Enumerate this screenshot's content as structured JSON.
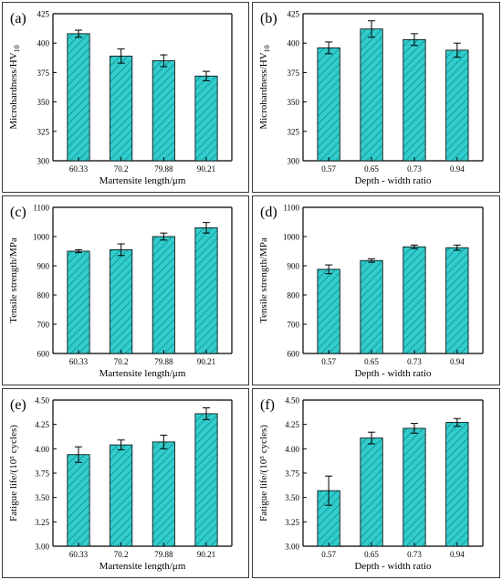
{
  "colors": {
    "bar_fill": "#33cccc",
    "bar_hatch": "#0d8f93",
    "axis": "#000000",
    "border": "#3a3a3a"
  },
  "chart_data": [
    {
      "id": "a",
      "type": "bar",
      "panel_label": "(a)",
      "categories": [
        "60.33",
        "70.2",
        "79.88",
        "90.21"
      ],
      "values": [
        408,
        389,
        385,
        372
      ],
      "errors": [
        3,
        6,
        5,
        4
      ],
      "xlabel": "Martensite length/μm",
      "ylabel": "Microhardness/HV",
      "ylabel_sub": "10",
      "ylim": [
        300,
        425
      ],
      "yticks": [
        "300",
        "325",
        "350",
        "375",
        "400",
        "425"
      ],
      "yticks_values": [
        300,
        325,
        350,
        375,
        400,
        425
      ]
    },
    {
      "id": "b",
      "type": "bar",
      "panel_label": "(b)",
      "categories": [
        "0.57",
        "0.65",
        "0.73",
        "0.94"
      ],
      "values": [
        396,
        412,
        403,
        394
      ],
      "errors": [
        5,
        7,
        5,
        6
      ],
      "xlabel": "Depth - width ratio",
      "ylabel": "Microhardness/HV",
      "ylabel_sub": "10",
      "ylim": [
        300,
        425
      ],
      "yticks": [
        "300",
        "325",
        "350",
        "375",
        "400",
        "425"
      ],
      "yticks_values": [
        300,
        325,
        350,
        375,
        400,
        425
      ]
    },
    {
      "id": "c",
      "type": "bar",
      "panel_label": "(c)",
      "categories": [
        "60.33",
        "70.2",
        "79.88",
        "90.21"
      ],
      "values": [
        950,
        955,
        1000,
        1030
      ],
      "errors": [
        5,
        20,
        12,
        18
      ],
      "xlabel": "Martensite length/μm",
      "ylabel": "Tensile strength/MPa",
      "ylabel_sub": "",
      "ylim": [
        600,
        1100
      ],
      "yticks": [
        "600",
        "700",
        "800",
        "900",
        "1000",
        "1100"
      ],
      "yticks_values": [
        600,
        700,
        800,
        900,
        1000,
        1100
      ]
    },
    {
      "id": "d",
      "type": "bar",
      "panel_label": "(d)",
      "categories": [
        "0.57",
        "0.65",
        "0.73",
        "0.94"
      ],
      "values": [
        888,
        918,
        965,
        962
      ],
      "errors": [
        15,
        6,
        6,
        9
      ],
      "xlabel": "Depth - width ratio",
      "ylabel": "Tensile strength/MPa",
      "ylabel_sub": "",
      "ylim": [
        600,
        1100
      ],
      "yticks": [
        "600",
        "700",
        "800",
        "900",
        "1000",
        "1100"
      ],
      "yticks_values": [
        600,
        700,
        800,
        900,
        1000,
        1100
      ]
    },
    {
      "id": "e",
      "type": "bar",
      "panel_label": "(e)",
      "categories": [
        "60.33",
        "70.2",
        "79.88",
        "90.21"
      ],
      "values": [
        3.94,
        4.04,
        4.07,
        4.36
      ],
      "errors": [
        0.08,
        0.05,
        0.07,
        0.06
      ],
      "xlabel": "Martensite length/μm",
      "ylabel": "Fatigue life/(10⁵ cycles)",
      "ylabel_sub": "",
      "ylim": [
        3.0,
        4.5
      ],
      "yticks": [
        "3.00",
        "3.25",
        "3.50",
        "3.75",
        "4.00",
        "4.25",
        "4.50"
      ],
      "yticks_values": [
        3.0,
        3.25,
        3.5,
        3.75,
        4.0,
        4.25,
        4.5
      ]
    },
    {
      "id": "f",
      "type": "bar",
      "panel_label": "(f)",
      "categories": [
        "0.57",
        "0.65",
        "0.73",
        "0.94"
      ],
      "values": [
        3.57,
        4.11,
        4.21,
        4.27
      ],
      "errors": [
        0.15,
        0.06,
        0.05,
        0.04
      ],
      "xlabel": "Depth - width ratio",
      "ylabel": "Fatigue life/(10⁵ cycles)",
      "ylabel_sub": "",
      "ylim": [
        3.0,
        4.5
      ],
      "yticks": [
        "3.00",
        "3.25",
        "3.50",
        "3.75",
        "4.00",
        "4.25",
        "4.50"
      ],
      "yticks_values": [
        3.0,
        3.25,
        3.5,
        3.75,
        4.0,
        4.25,
        4.5
      ]
    }
  ]
}
